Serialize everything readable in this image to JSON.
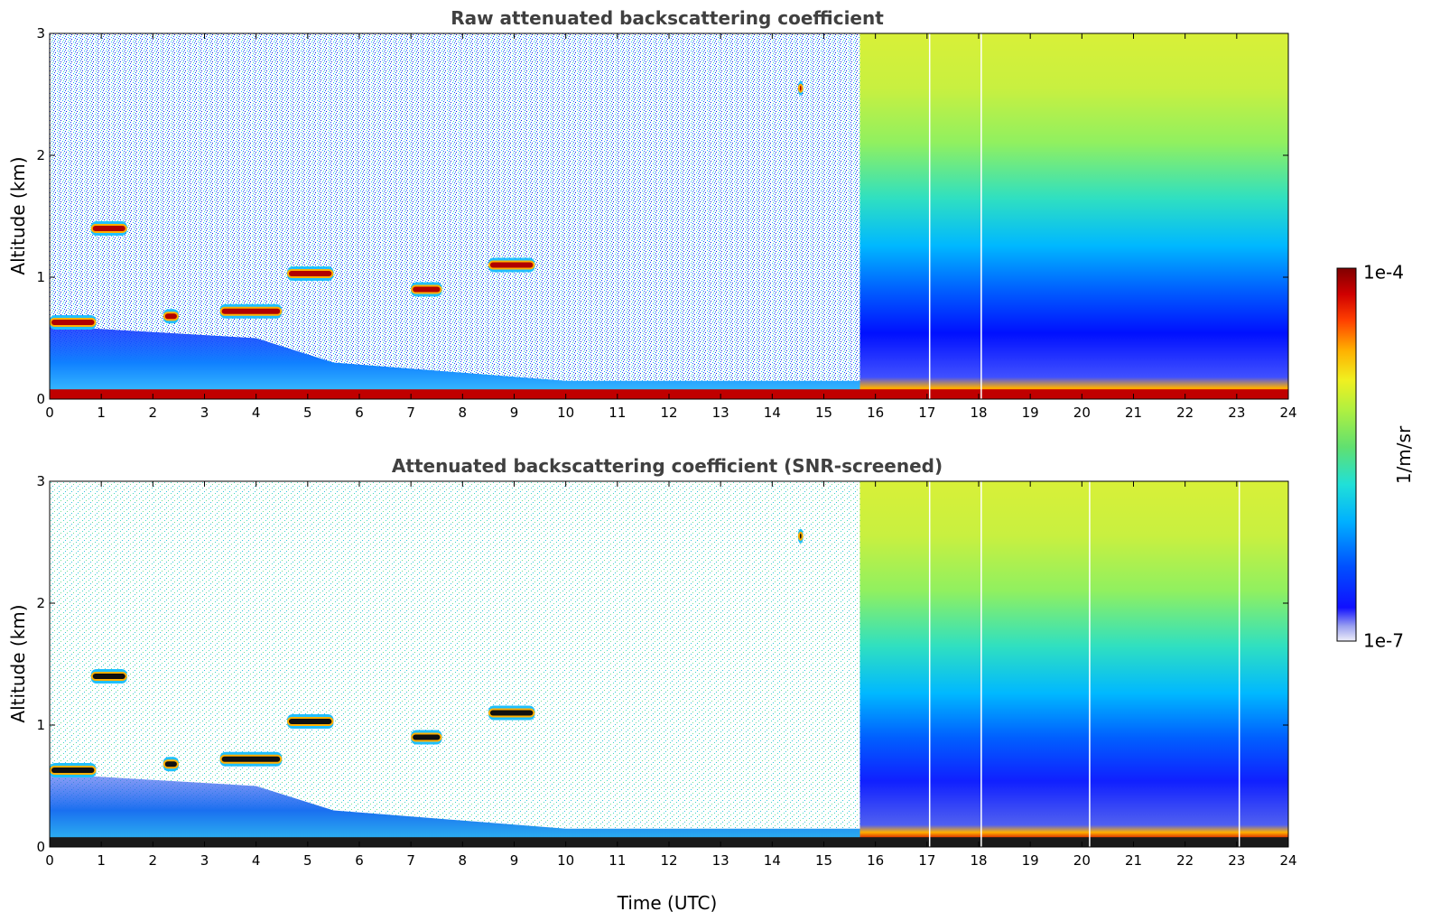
{
  "chart_data": [
    {
      "type": "heatmap",
      "title": "Raw attenuated backscattering coefficient",
      "xlabel": "",
      "ylabel": "Altitude (km)",
      "xlim": [
        0,
        24
      ],
      "ylim": [
        0,
        3
      ],
      "xticks": [
        "0",
        "1",
        "2",
        "3",
        "4",
        "5",
        "6",
        "7",
        "8",
        "9",
        "10",
        "11",
        "12",
        "13",
        "14",
        "15",
        "16",
        "17",
        "18",
        "19",
        "20",
        "21",
        "22",
        "23",
        "24"
      ],
      "yticks": [
        "0",
        "1",
        "2",
        "3"
      ],
      "features": {
        "boundary_layer_top_km": [
          [
            0,
            0.6
          ],
          [
            2,
            0.55
          ],
          [
            4,
            0.5
          ],
          [
            5.5,
            0.3
          ],
          [
            10,
            0.15
          ],
          [
            15.7,
            0.15
          ],
          [
            24,
            0.12
          ]
        ],
        "cloud_layers": [
          {
            "t0": 0.0,
            "t1": 0.9,
            "alt": 0.63
          },
          {
            "t0": 0.8,
            "t1": 1.5,
            "alt": 1.4
          },
          {
            "t0": 2.2,
            "t1": 2.5,
            "alt": 0.68
          },
          {
            "t0": 3.3,
            "t1": 4.5,
            "alt": 0.72
          },
          {
            "t0": 4.6,
            "t1": 5.5,
            "alt": 1.03
          },
          {
            "t0": 7.0,
            "t1": 7.6,
            "alt": 0.9
          },
          {
            "t0": 8.5,
            "t1": 9.4,
            "alt": 1.1
          },
          {
            "t0": 14.5,
            "t1": 14.6,
            "alt": 2.55
          }
        ],
        "daytime_background_start_h": 15.7,
        "missing_profiles_h": [
          17.05,
          18.05
        ]
      }
    },
    {
      "type": "heatmap",
      "title": "Attenuated backscattering coefficient (SNR-screened)",
      "xlabel": "Time (UTC)",
      "ylabel": "Altitude (km)",
      "xlim": [
        0,
        24
      ],
      "ylim": [
        0,
        3
      ],
      "xticks": [
        "0",
        "1",
        "2",
        "3",
        "4",
        "5",
        "6",
        "7",
        "8",
        "9",
        "10",
        "11",
        "12",
        "13",
        "14",
        "15",
        "16",
        "17",
        "18",
        "19",
        "20",
        "21",
        "22",
        "23",
        "24"
      ],
      "yticks": [
        "0",
        "1",
        "2",
        "3"
      ],
      "features": {
        "screened": true,
        "daytime_background_start_h": 15.7,
        "missing_profiles_h": [
          17.05,
          18.05,
          20.15,
          23.05
        ]
      }
    }
  ],
  "colorbar": {
    "label": "1/m/sr",
    "max_label": "1e-4",
    "min_label": "1e-7",
    "scale": "log",
    "colormap": [
      "#e8e8f8",
      "#9aa0f0",
      "#0000ff",
      "#0050ff",
      "#00b0ff",
      "#20e0e0",
      "#60e060",
      "#c0f040",
      "#f0f020",
      "#ffb000",
      "#ff4000",
      "#d00000",
      "#800000"
    ]
  }
}
